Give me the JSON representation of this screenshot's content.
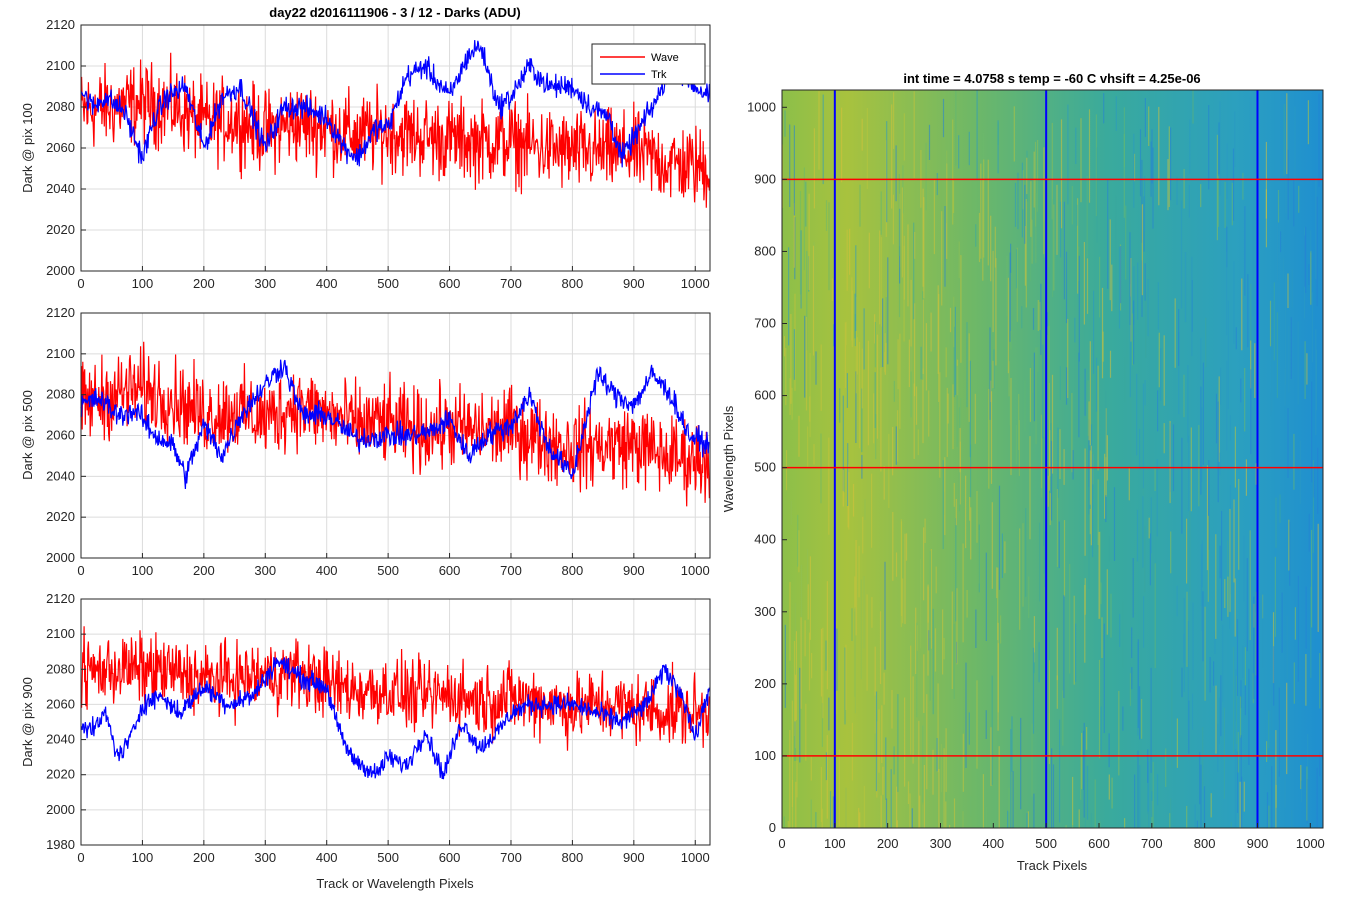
{
  "figure": {
    "title": "day22 d2016111906 - 3 / 12 - Darks (ADU)"
  },
  "colors": {
    "wave": "#ff0000",
    "trk": "#0000ff",
    "grid": "#dcdcdc",
    "axis": "#262626"
  },
  "chart_data": [
    {
      "type": "line",
      "title": "day22 d2016111906 - 3 / 12 - Darks (ADU)",
      "xlabel": "",
      "ylabel": "Dark @ pix 100",
      "xlim": [
        0,
        1024
      ],
      "ylim": [
        2000,
        2120
      ],
      "xticks": [
        0,
        100,
        200,
        300,
        400,
        500,
        600,
        700,
        800,
        900,
        1000
      ],
      "yticks": [
        2000,
        2020,
        2040,
        2060,
        2080,
        2100,
        2120
      ],
      "grid": true,
      "legend": {
        "position": "top-right",
        "entries": [
          "Wave",
          "Trk"
        ]
      },
      "series": [
        {
          "name": "Wave",
          "color": "#ff0000",
          "x": [
            0,
            50,
            100,
            150,
            200,
            250,
            300,
            350,
            400,
            450,
            500,
            550,
            600,
            650,
            700,
            750,
            800,
            850,
            900,
            950,
            1023
          ],
          "values": [
            2078,
            2080,
            2082,
            2080,
            2072,
            2074,
            2068,
            2072,
            2070,
            2066,
            2068,
            2066,
            2064,
            2063,
            2063,
            2060,
            2058,
            2058,
            2058,
            2053,
            2050
          ],
          "noise": 14
        },
        {
          "name": "Trk",
          "color": "#0000ff",
          "x": [
            0,
            20,
            40,
            70,
            100,
            120,
            140,
            170,
            200,
            230,
            260,
            300,
            330,
            360,
            400,
            430,
            450,
            480,
            500,
            530,
            560,
            600,
            630,
            650,
            680,
            700,
            730,
            760,
            800,
            830,
            860,
            880,
            900,
            940,
            960,
            1000,
            1023
          ],
          "values": [
            2088,
            2080,
            2085,
            2078,
            2055,
            2075,
            2085,
            2090,
            2060,
            2085,
            2090,
            2060,
            2080,
            2080,
            2075,
            2060,
            2055,
            2070,
            2070,
            2095,
            2100,
            2085,
            2105,
            2110,
            2080,
            2085,
            2100,
            2090,
            2090,
            2080,
            2075,
            2055,
            2065,
            2085,
            2100,
            2090,
            2085
          ],
          "noise": 4
        }
      ]
    },
    {
      "type": "line",
      "title": "",
      "xlabel": "",
      "ylabel": "Dark @ pix 500",
      "xlim": [
        0,
        1024
      ],
      "ylim": [
        2000,
        2120
      ],
      "xticks": [
        0,
        100,
        200,
        300,
        400,
        500,
        600,
        700,
        800,
        900,
        1000
      ],
      "yticks": [
        2000,
        2020,
        2040,
        2060,
        2080,
        2100,
        2120
      ],
      "grid": true,
      "series": [
        {
          "name": "Wave",
          "color": "#ff0000",
          "x": [
            0,
            50,
            100,
            150,
            200,
            250,
            300,
            350,
            400,
            450,
            500,
            550,
            600,
            650,
            700,
            750,
            800,
            850,
            900,
            950,
            1023
          ],
          "values": [
            2075,
            2080,
            2083,
            2078,
            2070,
            2072,
            2068,
            2075,
            2070,
            2065,
            2066,
            2062,
            2064,
            2062,
            2063,
            2058,
            2054,
            2055,
            2056,
            2050,
            2048
          ],
          "noise": 14
        },
        {
          "name": "Trk",
          "color": "#0000ff",
          "x": [
            0,
            30,
            60,
            90,
            120,
            150,
            170,
            200,
            230,
            260,
            300,
            330,
            360,
            400,
            450,
            500,
            540,
            570,
            600,
            630,
            660,
            700,
            730,
            760,
            800,
            840,
            870,
            900,
            930,
            960,
            990,
            1023
          ],
          "values": [
            2075,
            2078,
            2070,
            2072,
            2060,
            2055,
            2040,
            2065,
            2050,
            2070,
            2085,
            2095,
            2070,
            2070,
            2058,
            2060,
            2060,
            2062,
            2068,
            2050,
            2060,
            2065,
            2080,
            2055,
            2040,
            2090,
            2080,
            2075,
            2090,
            2080,
            2060,
            2055
          ],
          "noise": 4
        }
      ]
    },
    {
      "type": "line",
      "title": "",
      "xlabel": "Track or Wavelength Pixels",
      "ylabel": "Dark @ pix 900",
      "xlim": [
        0,
        1024
      ],
      "ylim": [
        1980,
        2120
      ],
      "xticks": [
        0,
        100,
        200,
        300,
        400,
        500,
        600,
        700,
        800,
        900,
        1000
      ],
      "yticks": [
        1980,
        2000,
        2020,
        2040,
        2060,
        2080,
        2100,
        2120
      ],
      "grid": true,
      "series": [
        {
          "name": "Wave",
          "color": "#ff0000",
          "x": [
            0,
            50,
            100,
            150,
            200,
            250,
            300,
            350,
            400,
            450,
            500,
            550,
            600,
            650,
            700,
            750,
            800,
            850,
            900,
            950,
            1023
          ],
          "values": [
            2078,
            2080,
            2080,
            2078,
            2074,
            2075,
            2076,
            2078,
            2072,
            2068,
            2068,
            2064,
            2066,
            2062,
            2064,
            2062,
            2058,
            2060,
            2058,
            2056,
            2055
          ],
          "noise": 14
        },
        {
          "name": "Trk",
          "color": "#0000ff",
          "x": [
            0,
            20,
            40,
            60,
            80,
            100,
            130,
            160,
            200,
            240,
            280,
            320,
            360,
            400,
            420,
            440,
            460,
            480,
            500,
            530,
            560,
            590,
            620,
            650,
            680,
            700,
            730,
            760,
            800,
            840,
            880,
            920,
            950,
            980,
            1000,
            1023
          ],
          "values": [
            2050,
            2045,
            2055,
            2030,
            2040,
            2060,
            2065,
            2055,
            2070,
            2060,
            2065,
            2085,
            2075,
            2070,
            2045,
            2030,
            2025,
            2020,
            2030,
            2025,
            2045,
            2020,
            2050,
            2035,
            2045,
            2055,
            2060,
            2060,
            2060,
            2055,
            2050,
            2060,
            2080,
            2065,
            2040,
            2070
          ],
          "noise": 4
        }
      ]
    },
    {
      "type": "heatmap",
      "title": "int time = 4.0758 s    temp = -60 C    vhsift = 4.25e-06",
      "xlabel": "Track Pixels",
      "ylabel": "Wavelength Pixels",
      "xlim": [
        0,
        1024
      ],
      "ylim": [
        0,
        1024
      ],
      "xticks": [
        0,
        100,
        200,
        300,
        400,
        500,
        600,
        700,
        800,
        900,
        1000
      ],
      "yticks": [
        0,
        100,
        200,
        300,
        400,
        500,
        600,
        700,
        800,
        900,
        1000
      ],
      "colormap": "parula",
      "vertical_markers": {
        "x": [
          100,
          500,
          900
        ],
        "color": "#0000ff"
      },
      "horizontal_markers": {
        "y": [
          100,
          500,
          900
        ],
        "color": "#ff0000"
      }
    }
  ]
}
